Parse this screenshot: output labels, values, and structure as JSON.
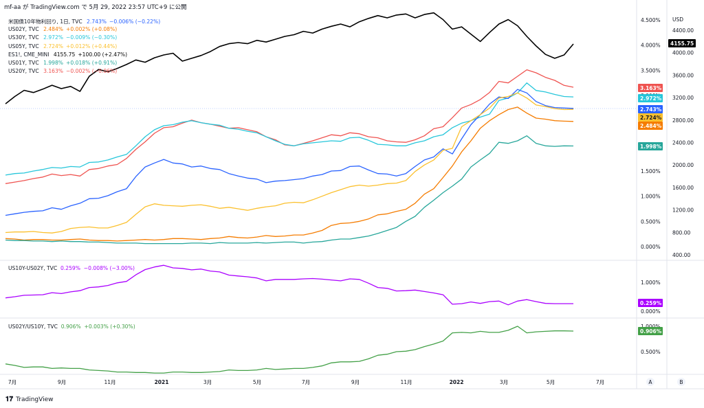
{
  "header": {
    "text": "mf-aa が TradingView.com で 5月 29, 2022 23:57 UTC+9 に公開"
  },
  "footer": {
    "brand": "TradingView"
  },
  "colors": {
    "US10Y": "#2962ff",
    "US02Y": "#f57c00",
    "US30Y": "#26c6da",
    "US05Y": "#fbc02d",
    "ES": "#000000",
    "US01Y": "#26a69a",
    "US20Y": "#ef5350",
    "spread": "#aa00ff",
    "ratio": "#43a047"
  },
  "legend": [
    {
      "symbol": "米国債10年物利回り, 1日, TVC",
      "value": "2.743%",
      "change": "−0.006% (−0.22%)",
      "key": "US10Y"
    },
    {
      "symbol": "US02Y, TVC",
      "value": "2.484%",
      "change": "+0.002% (+0.08%)",
      "key": "US02Y"
    },
    {
      "symbol": "US30Y, TVC",
      "value": "2.972%",
      "change": "−0.009% (−0.30%)",
      "key": "US30Y"
    },
    {
      "symbol": "US05Y, TVC",
      "value": "2.724%",
      "change": "+0.012% (+0.44%)",
      "key": "US05Y"
    },
    {
      "symbol": "ES1!, CME_MINI",
      "value": "4155.75",
      "change": "+100.00 (+2.47%)",
      "key": "ES"
    },
    {
      "symbol": "US01Y, TVC",
      "value": "1.998%",
      "change": "+0.018% (+0.91%)",
      "key": "US01Y"
    },
    {
      "symbol": "US20Y, TVC",
      "value": "3.163%",
      "change": "−0.002% (−0.06%)",
      "key": "US20Y"
    }
  ],
  "pane2_legend": {
    "symbol": "US10Y-US02Y, TVC",
    "value": "0.259%",
    "change": "−0.008% (−3.00%)"
  },
  "pane3_legend": {
    "symbol": "US02Y/US10Y, TVC",
    "value": "0.906%",
    "change": "+0.003% (+0.30%)"
  },
  "chart_data": {
    "type": "line",
    "x_ticks": [
      "7月",
      "9月",
      "11月",
      "2021",
      "3月",
      "5月",
      "7月",
      "9月",
      "11月",
      "2022",
      "3月",
      "5月",
      "7月"
    ],
    "panes": [
      {
        "name": "main",
        "left_axis": {
          "unit": "%",
          "ticks": [
            "4.500%",
            "4.000%",
            "3.500%",
            "3.000%",
            "2.500%",
            "2.000%",
            "1.500%",
            "1.000%",
            "0.500%",
            "0.000%"
          ]
        },
        "right_axis": {
          "unit": "USD",
          "ticks": [
            "4400.00",
            "4000.00",
            "3600.00",
            "3200.00",
            "2800.00",
            "2400.00",
            "2000.00",
            "1600.00",
            "1200.00",
            "800.00",
            "400.00"
          ]
        },
        "series": [
          {
            "name": "ES1!",
            "axis": "right",
            "last": "4155.75",
            "values": [
              3090,
              3220,
              3330,
              3290,
              3350,
              3420,
              3360,
              3400,
              3310,
              3580,
              3700,
              3660,
              3720,
              3790,
              3870,
              3830,
              3910,
              3960,
              3990,
              3850,
              3900,
              3950,
              4020,
              4110,
              4160,
              4180,
              4160,
              4220,
              4190,
              4240,
              4290,
              4320,
              4380,
              4350,
              4420,
              4470,
              4510,
              4460,
              4550,
              4610,
              4660,
              4620,
              4670,
              4690,
              4620,
              4680,
              4710,
              4590,
              4420,
              4460,
              4330,
              4200,
              4360,
              4510,
              4590,
              4480,
              4290,
              4120,
              3970,
              3900,
              3960,
              4155
            ]
          },
          {
            "name": "US20Y",
            "axis": "left",
            "last": "3.163%",
            "values": [
              1.25,
              1.28,
              1.31,
              1.35,
              1.38,
              1.44,
              1.41,
              1.43,
              1.4,
              1.53,
              1.55,
              1.6,
              1.63,
              1.75,
              1.93,
              2.08,
              2.25,
              2.36,
              2.38,
              2.45,
              2.51,
              2.46,
              2.43,
              2.39,
              2.35,
              2.36,
              2.32,
              2.28,
              2.18,
              2.12,
              2.02,
              2.0,
              2.05,
              2.1,
              2.16,
              2.22,
              2.2,
              2.26,
              2.24,
              2.18,
              2.16,
              2.1,
              2.08,
              2.07,
              2.12,
              2.2,
              2.34,
              2.38,
              2.56,
              2.75,
              2.82,
              2.92,
              3.06,
              3.28,
              3.25,
              3.38,
              3.51,
              3.45,
              3.36,
              3.3,
              3.2,
              3.163
            ]
          },
          {
            "name": "US30Y",
            "axis": "left",
            "last": "2.972%",
            "values": [
              1.42,
              1.45,
              1.46,
              1.5,
              1.53,
              1.57,
              1.56,
              1.59,
              1.58,
              1.67,
              1.68,
              1.72,
              1.78,
              1.83,
              2.0,
              2.18,
              2.32,
              2.4,
              2.42,
              2.47,
              2.5,
              2.46,
              2.43,
              2.41,
              2.35,
              2.33,
              2.29,
              2.26,
              2.18,
              2.1,
              2.03,
              2.0,
              2.04,
              2.06,
              2.08,
              2.1,
              2.09,
              2.16,
              2.17,
              2.11,
              2.03,
              2.02,
              2.0,
              2.0,
              2.06,
              2.1,
              2.18,
              2.22,
              2.36,
              2.45,
              2.5,
              2.57,
              2.63,
              2.9,
              2.95,
              3.05,
              3.25,
              3.1,
              3.07,
              3.02,
              2.98,
              2.972
            ]
          },
          {
            "name": "US10Y",
            "axis": "left",
            "last": "2.743%",
            "values": [
              0.62,
              0.65,
              0.68,
              0.7,
              0.71,
              0.77,
              0.74,
              0.81,
              0.86,
              0.95,
              0.96,
              1.01,
              1.09,
              1.15,
              1.39,
              1.58,
              1.66,
              1.73,
              1.66,
              1.64,
              1.58,
              1.6,
              1.55,
              1.53,
              1.45,
              1.4,
              1.36,
              1.34,
              1.27,
              1.3,
              1.31,
              1.33,
              1.35,
              1.4,
              1.43,
              1.5,
              1.51,
              1.59,
              1.6,
              1.52,
              1.45,
              1.44,
              1.4,
              1.45,
              1.59,
              1.72,
              1.78,
              1.94,
              1.84,
              2.14,
              2.42,
              2.62,
              2.83,
              2.97,
              2.94,
              3.12,
              3.05,
              2.88,
              2.8,
              2.76,
              2.75,
              2.743
            ]
          },
          {
            "name": "US05Y",
            "axis": "left",
            "last": "2.724%",
            "values": [
              0.28,
              0.29,
              0.29,
              0.3,
              0.28,
              0.27,
              0.3,
              0.36,
              0.38,
              0.39,
              0.37,
              0.37,
              0.42,
              0.48,
              0.64,
              0.79,
              0.85,
              0.82,
              0.81,
              0.8,
              0.82,
              0.83,
              0.8,
              0.76,
              0.78,
              0.75,
              0.72,
              0.76,
              0.79,
              0.81,
              0.86,
              0.88,
              0.87,
              0.93,
              1.0,
              1.07,
              1.13,
              1.19,
              1.22,
              1.2,
              1.22,
              1.25,
              1.26,
              1.31,
              1.49,
              1.62,
              1.72,
              1.91,
              1.95,
              2.38,
              2.5,
              2.62,
              2.75,
              2.95,
              2.98,
              3.05,
              2.95,
              2.81,
              2.78,
              2.74,
              2.72,
              2.724
            ]
          },
          {
            "name": "US02Y",
            "axis": "left",
            "last": "2.484%",
            "values": [
              0.16,
              0.15,
              0.13,
              0.14,
              0.14,
              0.13,
              0.13,
              0.14,
              0.15,
              0.13,
              0.12,
              0.12,
              0.11,
              0.12,
              0.13,
              0.14,
              0.13,
              0.14,
              0.16,
              0.16,
              0.15,
              0.14,
              0.16,
              0.17,
              0.2,
              0.18,
              0.17,
              0.19,
              0.22,
              0.2,
              0.21,
              0.23,
              0.23,
              0.27,
              0.32,
              0.42,
              0.46,
              0.47,
              0.5,
              0.55,
              0.63,
              0.65,
              0.7,
              0.74,
              0.86,
              1.04,
              1.15,
              1.37,
              1.6,
              1.88,
              2.1,
              2.35,
              2.5,
              2.62,
              2.72,
              2.77,
              2.65,
              2.55,
              2.53,
              2.5,
              2.49,
              2.484
            ]
          },
          {
            "name": "US01Y",
            "axis": "left",
            "last": "1.998%",
            "values": [
              0.13,
              0.12,
              0.12,
              0.11,
              0.11,
              0.1,
              0.11,
              0.1,
              0.1,
              0.09,
              0.09,
              0.08,
              0.07,
              0.07,
              0.07,
              0.06,
              0.06,
              0.06,
              0.06,
              0.06,
              0.07,
              0.07,
              0.06,
              0.08,
              0.07,
              0.07,
              0.07,
              0.08,
              0.07,
              0.08,
              0.09,
              0.09,
              0.07,
              0.09,
              0.1,
              0.13,
              0.15,
              0.15,
              0.18,
              0.21,
              0.26,
              0.32,
              0.38,
              0.5,
              0.6,
              0.78,
              0.92,
              1.07,
              1.2,
              1.34,
              1.58,
              1.72,
              1.85,
              2.07,
              2.05,
              2.1,
              2.2,
              2.05,
              2.0,
              1.99,
              2.0,
              1.998
            ]
          }
        ]
      },
      {
        "name": "spread",
        "axis": {
          "unit": "%",
          "ticks": [
            "1.000%",
            "0.000%"
          ]
        },
        "series": [
          {
            "name": "US10Y-US02Y",
            "last": "0.259%",
            "values": [
              0.46,
              0.5,
              0.55,
              0.56,
              0.57,
              0.64,
              0.61,
              0.67,
              0.71,
              0.82,
              0.84,
              0.89,
              0.98,
              1.03,
              1.26,
              1.44,
              1.53,
              1.59,
              1.5,
              1.48,
              1.43,
              1.46,
              1.39,
              1.36,
              1.25,
              1.22,
              1.19,
              1.15,
              1.05,
              1.1,
              1.1,
              1.1,
              1.12,
              1.13,
              1.11,
              1.08,
              1.05,
              1.12,
              1.1,
              0.97,
              0.82,
              0.79,
              0.7,
              0.71,
              0.73,
              0.68,
              0.63,
              0.57,
              0.24,
              0.26,
              0.32,
              0.27,
              0.33,
              0.35,
              0.22,
              0.35,
              0.4,
              0.33,
              0.27,
              0.26,
              0.26,
              0.259
            ]
          }
        ]
      },
      {
        "name": "ratio",
        "axis": {
          "unit": "%",
          "ticks": [
            "1.000%",
            "0.500%"
          ]
        },
        "series": [
          {
            "name": "US02Y/US10Y",
            "last": "0.906%",
            "values": [
              0.26,
              0.23,
              0.19,
              0.2,
              0.2,
              0.17,
              0.18,
              0.17,
              0.17,
              0.14,
              0.13,
              0.12,
              0.1,
              0.1,
              0.09,
              0.09,
              0.08,
              0.08,
              0.1,
              0.1,
              0.09,
              0.09,
              0.1,
              0.11,
              0.14,
              0.13,
              0.13,
              0.14,
              0.17,
              0.15,
              0.16,
              0.17,
              0.17,
              0.19,
              0.22,
              0.28,
              0.3,
              0.3,
              0.31,
              0.36,
              0.43,
              0.45,
              0.5,
              0.51,
              0.54,
              0.6,
              0.65,
              0.71,
              0.87,
              0.88,
              0.87,
              0.9,
              0.88,
              0.88,
              0.92,
              1.0,
              0.87,
              0.89,
              0.9,
              0.91,
              0.91,
              0.906
            ]
          }
        ]
      }
    ]
  }
}
